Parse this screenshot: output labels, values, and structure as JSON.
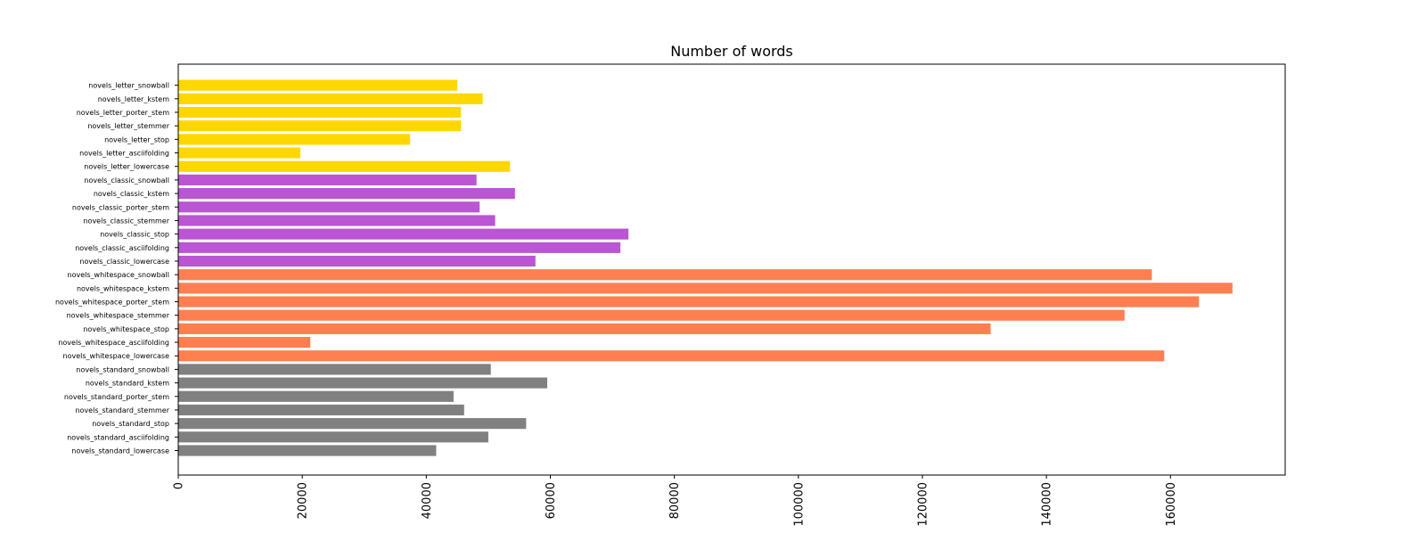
{
  "chart_data": {
    "type": "bar",
    "orientation": "horizontal",
    "title": "Number of words",
    "xlabel": "",
    "ylabel": "",
    "xlim": [
      0,
      178500
    ],
    "xticks": [
      0,
      20000,
      40000,
      60000,
      80000,
      100000,
      120000,
      140000,
      160000
    ],
    "grid": false,
    "colors": {
      "letter": "#ffd700",
      "classic": "#ba55d3",
      "whitespace": "#ff7f50",
      "standard": "#808080"
    },
    "bars": [
      {
        "label": "novels_standard_lowercase",
        "value": 41600,
        "group": "standard"
      },
      {
        "label": "novels_standard_asciifolding",
        "value": 50000,
        "group": "standard"
      },
      {
        "label": "novels_standard_stop",
        "value": 56100,
        "group": "standard"
      },
      {
        "label": "novels_standard_stemmer",
        "value": 46100,
        "group": "standard"
      },
      {
        "label": "novels_standard_porter_stem",
        "value": 44400,
        "group": "standard"
      },
      {
        "label": "novels_standard_kstem",
        "value": 59500,
        "group": "standard"
      },
      {
        "label": "novels_standard_snowball",
        "value": 50400,
        "group": "standard"
      },
      {
        "label": "novels_whitespace_lowercase",
        "value": 159000,
        "group": "whitespace"
      },
      {
        "label": "novels_whitespace_asciifolding",
        "value": 21300,
        "group": "whitespace"
      },
      {
        "label": "novels_whitespace_stop",
        "value": 131000,
        "group": "whitespace"
      },
      {
        "label": "novels_whitespace_stemmer",
        "value": 152600,
        "group": "whitespace"
      },
      {
        "label": "novels_whitespace_porter_stem",
        "value": 164600,
        "group": "whitespace"
      },
      {
        "label": "novels_whitespace_kstem",
        "value": 170000,
        "group": "whitespace"
      },
      {
        "label": "novels_whitespace_snowball",
        "value": 157000,
        "group": "whitespace"
      },
      {
        "label": "novels_classic_lowercase",
        "value": 57600,
        "group": "classic"
      },
      {
        "label": "novels_classic_asciifolding",
        "value": 71300,
        "group": "classic"
      },
      {
        "label": "novels_classic_stop",
        "value": 72600,
        "group": "classic"
      },
      {
        "label": "novels_classic_stemmer",
        "value": 51100,
        "group": "classic"
      },
      {
        "label": "novels_classic_porter_stem",
        "value": 48600,
        "group": "classic"
      },
      {
        "label": "novels_classic_kstem",
        "value": 54300,
        "group": "classic"
      },
      {
        "label": "novels_classic_snowball",
        "value": 48100,
        "group": "classic"
      },
      {
        "label": "novels_letter_lowercase",
        "value": 53500,
        "group": "letter"
      },
      {
        "label": "novels_letter_asciifolding",
        "value": 19700,
        "group": "letter"
      },
      {
        "label": "novels_letter_stop",
        "value": 37400,
        "group": "letter"
      },
      {
        "label": "novels_letter_stemmer",
        "value": 45600,
        "group": "letter"
      },
      {
        "label": "novels_letter_porter_stem",
        "value": 45600,
        "group": "letter"
      },
      {
        "label": "novels_letter_kstem",
        "value": 49100,
        "group": "letter"
      },
      {
        "label": "novels_letter_snowball",
        "value": 45000,
        "group": "letter"
      }
    ]
  }
}
